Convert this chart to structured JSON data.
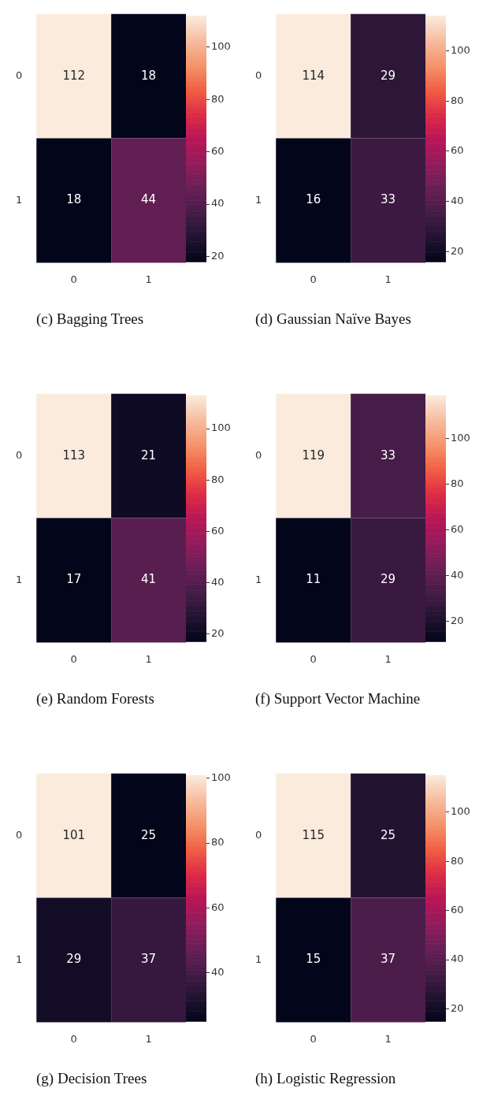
{
  "chart_data": [
    {
      "type": "heatmap",
      "title": "(c)  Bagging Trees",
      "categories": [
        "0",
        "1"
      ],
      "y_categories": [
        "0",
        "1"
      ],
      "cells": [
        [
          112,
          18
        ],
        [
          18,
          44
        ]
      ],
      "clim": [
        18,
        112
      ],
      "cticks": [
        20,
        40,
        60,
        80,
        100
      ],
      "data_labels": true
    },
    {
      "type": "heatmap",
      "title": "(d)  Gaussian Naïve Bayes",
      "categories": [
        "0",
        "1"
      ],
      "y_categories": [
        "0",
        "1"
      ],
      "cells": [
        [
          114,
          29
        ],
        [
          16,
          33
        ]
      ],
      "clim": [
        16,
        114
      ],
      "cticks": [
        20,
        40,
        60,
        80,
        100
      ],
      "data_labels": true
    },
    {
      "type": "heatmap",
      "title": "(e)  Random Forests",
      "categories": [
        "0",
        "1"
      ],
      "y_categories": [
        "0",
        "1"
      ],
      "cells": [
        [
          113,
          21
        ],
        [
          17,
          41
        ]
      ],
      "clim": [
        17,
        113
      ],
      "cticks": [
        20,
        40,
        60,
        80,
        100
      ],
      "data_labels": true
    },
    {
      "type": "heatmap",
      "title": "(f)  Support Vector Machine",
      "categories": [
        "0",
        "1"
      ],
      "y_categories": [
        "0",
        "1"
      ],
      "cells": [
        [
          119,
          33
        ],
        [
          11,
          29
        ]
      ],
      "clim": [
        11,
        119
      ],
      "cticks": [
        20,
        40,
        60,
        80,
        100
      ],
      "data_labels": true
    },
    {
      "type": "heatmap",
      "title": "(g)  Decision Trees",
      "categories": [
        "0",
        "1"
      ],
      "y_categories": [
        "0",
        "1"
      ],
      "cells": [
        [
          101,
          25
        ],
        [
          29,
          37
        ]
      ],
      "clim": [
        25,
        101
      ],
      "cticks": [
        40,
        60,
        80,
        100
      ],
      "data_labels": true
    },
    {
      "type": "heatmap",
      "title": "(h)  Logistic Regression",
      "categories": [
        "0",
        "1"
      ],
      "y_categories": [
        "0",
        "1"
      ],
      "cells": [
        [
          115,
          25
        ],
        [
          15,
          37
        ]
      ],
      "clim": [
        15,
        115
      ],
      "cticks": [
        20,
        40,
        60,
        80,
        100
      ],
      "data_labels": true
    }
  ]
}
